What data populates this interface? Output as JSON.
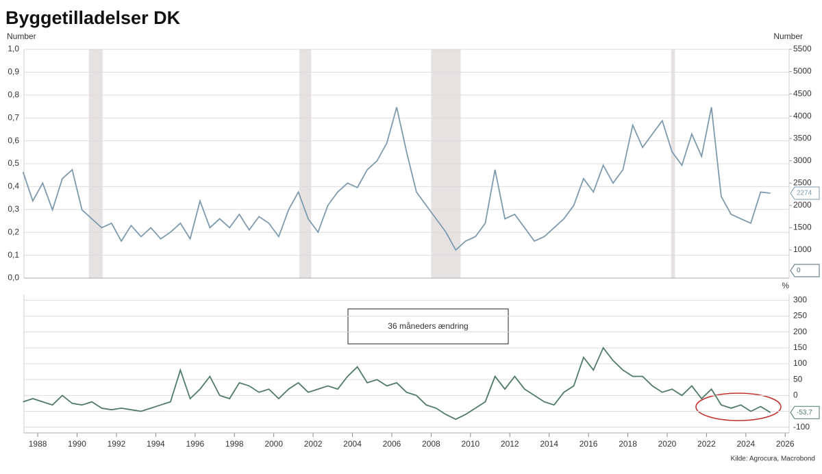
{
  "chart_data": [
    {
      "type": "line",
      "title": "Byggetilladelser DK",
      "ylabel": "Number",
      "y2label": "Number",
      "xlim": [
        1987.3,
        2026.2
      ],
      "ylim": [
        0,
        1
      ],
      "yticks": [
        {
          "value": 0,
          "label": "0,0"
        },
        {
          "value": 0.1,
          "label": "0,1"
        },
        {
          "value": 0.2,
          "label": "0,2"
        },
        {
          "value": 0.3,
          "label": "0,3"
        },
        {
          "value": 0.4,
          "label": "0,4"
        },
        {
          "value": 0.5,
          "label": "0,5"
        },
        {
          "value": 0.6,
          "label": "0,6"
        },
        {
          "value": 0.7,
          "label": "0,7"
        },
        {
          "value": 0.8,
          "label": "0,8"
        },
        {
          "value": 0.9,
          "label": "0,9"
        },
        {
          "value": 1,
          "label": "1,0"
        }
      ],
      "y2lim": [
        370,
        5500
      ],
      "y2ticks": [
        1000,
        1500,
        2000,
        2500,
        3000,
        3500,
        4000,
        4500,
        5000,
        5500
      ],
      "grid": true,
      "recession_color": "#e6e2e1",
      "recessions": [
        {
          "start": 1990.6,
          "end": 1991.3
        },
        {
          "start": 2001.3,
          "end": 2001.9
        },
        {
          "start": 2008.0,
          "end": 2009.5
        },
        {
          "start": 2020.2,
          "end": 2020.4
        }
      ],
      "recession_last_value": 0,
      "series": [
        {
          "color": "#7d9aad",
          "axis": "y2",
          "last_value_label": "2274",
          "x": [
            1987.25,
            1987.75,
            1988.25,
            1988.75,
            1989.25,
            1989.75,
            1990.25,
            1990.75,
            1991.25,
            1991.75,
            1992.25,
            1992.75,
            1993.25,
            1993.75,
            1994.25,
            1994.75,
            1995.25,
            1995.75,
            1996.25,
            1996.75,
            1997.25,
            1997.75,
            1998.25,
            1998.75,
            1999.25,
            1999.75,
            2000.25,
            2000.75,
            2001.25,
            2001.75,
            2002.25,
            2002.75,
            2003.25,
            2003.75,
            2004.25,
            2004.75,
            2005.25,
            2005.75,
            2006.25,
            2006.75,
            2007.25,
            2007.75,
            2008.25,
            2008.75,
            2009.25,
            2009.75,
            2010.25,
            2010.75,
            2011.25,
            2011.75,
            2012.25,
            2012.75,
            2013.25,
            2013.75,
            2014.25,
            2014.75,
            2015.25,
            2015.75,
            2016.25,
            2016.75,
            2017.25,
            2017.75,
            2018.25,
            2018.75,
            2019.25,
            2019.75,
            2020.25,
            2020.75,
            2021.25,
            2021.75,
            2022.25,
            2022.75,
            2023.25,
            2023.75,
            2024.25,
            2024.75,
            2025.25
          ],
          "values": [
            2750,
            2100,
            2500,
            1900,
            2600,
            2800,
            1900,
            1700,
            1500,
            1600,
            1200,
            1550,
            1300,
            1500,
            1250,
            1400,
            1600,
            1250,
            2100,
            1500,
            1700,
            1500,
            1800,
            1450,
            1750,
            1600,
            1300,
            1900,
            2300,
            1700,
            1400,
            2000,
            2300,
            2500,
            2400,
            2800,
            3000,
            3400,
            4200,
            3200,
            2300,
            2000,
            1700,
            1400,
            1000,
            1200,
            1300,
            1600,
            2800,
            1700,
            1800,
            1500,
            1200,
            1300,
            1500,
            1700,
            2000,
            2600,
            2300,
            2900,
            2500,
            2800,
            3800,
            3300,
            3600,
            3900,
            3200,
            2900,
            3600,
            3100,
            4200,
            2200,
            1800,
            1700,
            1600,
            2300,
            2274
          ]
        }
      ]
    },
    {
      "type": "line",
      "ylabel": "%",
      "annotation": "36 måneders ændring",
      "source": "Kilde: Agrocura, Macrobond",
      "xlim": [
        1987.3,
        2026.2
      ],
      "xticks": [
        1988,
        1990,
        1992,
        1994,
        1996,
        1998,
        2000,
        2002,
        2004,
        2006,
        2008,
        2010,
        2012,
        2014,
        2016,
        2018,
        2020,
        2022,
        2024,
        2026
      ],
      "ylim": [
        -118,
        318
      ],
      "yticks": [
        -100,
        -50,
        0,
        50,
        100,
        150,
        200,
        250,
        300
      ],
      "grid": true,
      "series": [
        {
          "color": "#4f7a64",
          "last_value_label": "-53,7",
          "x": [
            1987.25,
            1987.75,
            1988.25,
            1988.75,
            1989.25,
            1989.75,
            1990.25,
            1990.75,
            1991.25,
            1991.75,
            1992.25,
            1992.75,
            1993.25,
            1993.75,
            1994.25,
            1994.75,
            1995.25,
            1995.75,
            1996.25,
            1996.75,
            1997.25,
            1997.75,
            1998.25,
            1998.75,
            1999.25,
            1999.75,
            2000.25,
            2000.75,
            2001.25,
            2001.75,
            2002.25,
            2002.75,
            2003.25,
            2003.75,
            2004.25,
            2004.75,
            2005.25,
            2005.75,
            2006.25,
            2006.75,
            2007.25,
            2007.75,
            2008.25,
            2008.75,
            2009.25,
            2009.75,
            2010.25,
            2010.75,
            2011.25,
            2011.75,
            2012.25,
            2012.75,
            2013.25,
            2013.75,
            2014.25,
            2014.75,
            2015.25,
            2015.75,
            2016.25,
            2016.75,
            2017.25,
            2017.75,
            2018.25,
            2018.75,
            2019.25,
            2019.75,
            2020.25,
            2020.75,
            2021.25,
            2021.75,
            2022.25,
            2022.75,
            2023.25,
            2023.75,
            2024.25,
            2024.75,
            2025.25
          ],
          "values": [
            -20,
            -10,
            -20,
            -30,
            0,
            -25,
            -30,
            -20,
            -40,
            -45,
            -40,
            -45,
            -50,
            -40,
            -30,
            -20,
            80,
            -10,
            20,
            60,
            0,
            -10,
            40,
            30,
            10,
            20,
            -10,
            20,
            40,
            10,
            20,
            30,
            20,
            60,
            90,
            40,
            50,
            30,
            40,
            10,
            0,
            -30,
            -40,
            -60,
            -75,
            -60,
            -40,
            -20,
            60,
            20,
            60,
            20,
            0,
            -20,
            -30,
            10,
            30,
            120,
            80,
            150,
            110,
            80,
            60,
            60,
            30,
            10,
            20,
            0,
            30,
            -10,
            20,
            -30,
            -40,
            -30,
            -50,
            -35,
            -53.7
          ]
        }
      ]
    }
  ]
}
